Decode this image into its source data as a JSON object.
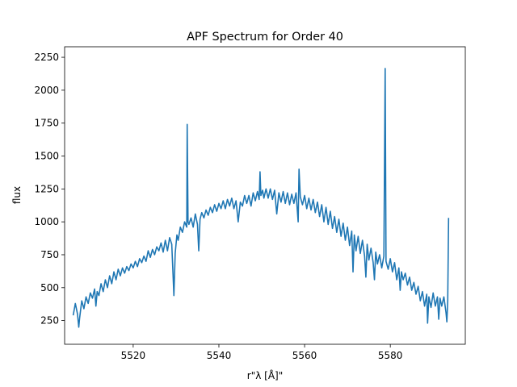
{
  "chart_data": {
    "type": "line",
    "title": "APF Spectrum for Order 40",
    "xlabel": "r\"λ [Å]\"",
    "ylabel": "flux",
    "xlim": [
      5504.0,
      5597.5
    ],
    "ylim": [
      70,
      2330
    ],
    "xticks": [
      5520,
      5540,
      5560,
      5580
    ],
    "yticks": [
      250,
      500,
      750,
      1000,
      1250,
      1500,
      1750,
      2000,
      2250
    ],
    "grid": false,
    "line_color": "#1f77b4",
    "series": [
      {
        "points": [
          [
            5506.0,
            290
          ],
          [
            5506.5,
            380
          ],
          [
            5507.0,
            300
          ],
          [
            5507.3,
            200
          ],
          [
            5507.5,
            270
          ],
          [
            5508.0,
            400
          ],
          [
            5508.5,
            340
          ],
          [
            5509.0,
            430
          ],
          [
            5509.5,
            380
          ],
          [
            5510.0,
            460
          ],
          [
            5510.5,
            420
          ],
          [
            5511.0,
            490
          ],
          [
            5511.3,
            360
          ],
          [
            5511.6,
            470
          ],
          [
            5512.0,
            440
          ],
          [
            5512.5,
            530
          ],
          [
            5513.0,
            470
          ],
          [
            5513.5,
            560
          ],
          [
            5514.0,
            500
          ],
          [
            5514.5,
            590
          ],
          [
            5515.0,
            530
          ],
          [
            5515.5,
            620
          ],
          [
            5516.0,
            560
          ],
          [
            5516.5,
            640
          ],
          [
            5517.0,
            590
          ],
          [
            5517.5,
            650
          ],
          [
            5518.0,
            610
          ],
          [
            5518.5,
            660
          ],
          [
            5519.0,
            630
          ],
          [
            5519.5,
            680
          ],
          [
            5520.0,
            650
          ],
          [
            5520.5,
            700
          ],
          [
            5521.0,
            660
          ],
          [
            5521.5,
            720
          ],
          [
            5522.0,
            690
          ],
          [
            5522.5,
            740
          ],
          [
            5523.0,
            700
          ],
          [
            5523.5,
            780
          ],
          [
            5524.0,
            730
          ],
          [
            5524.5,
            790
          ],
          [
            5525.0,
            750
          ],
          [
            5525.5,
            810
          ],
          [
            5526.0,
            780
          ],
          [
            5526.5,
            840
          ],
          [
            5527.0,
            770
          ],
          [
            5527.5,
            860
          ],
          [
            5528.0,
            780
          ],
          [
            5528.5,
            880
          ],
          [
            5529.0,
            830
          ],
          [
            5529.3,
            600
          ],
          [
            5529.5,
            440
          ],
          [
            5529.8,
            760
          ],
          [
            5530.2,
            900
          ],
          [
            5530.5,
            860
          ],
          [
            5531.0,
            960
          ],
          [
            5531.5,
            920
          ],
          [
            5532.0,
            1000
          ],
          [
            5532.5,
            960
          ],
          [
            5532.6,
            1740
          ],
          [
            5532.8,
            1000
          ],
          [
            5533.0,
            980
          ],
          [
            5533.5,
            1030
          ],
          [
            5534.0,
            960
          ],
          [
            5534.5,
            1060
          ],
          [
            5535.0,
            980
          ],
          [
            5535.3,
            780
          ],
          [
            5535.6,
            1020
          ],
          [
            5536.0,
            1070
          ],
          [
            5536.5,
            1030
          ],
          [
            5537.0,
            1090
          ],
          [
            5537.5,
            1050
          ],
          [
            5538.0,
            1110
          ],
          [
            5538.5,
            1070
          ],
          [
            5539.0,
            1130
          ],
          [
            5539.5,
            1080
          ],
          [
            5540.0,
            1140
          ],
          [
            5540.5,
            1100
          ],
          [
            5541.0,
            1160
          ],
          [
            5541.5,
            1100
          ],
          [
            5542.0,
            1170
          ],
          [
            5542.5,
            1120
          ],
          [
            5543.0,
            1180
          ],
          [
            5543.5,
            1100
          ],
          [
            5544.0,
            1160
          ],
          [
            5544.5,
            1000
          ],
          [
            5545.0,
            1150
          ],
          [
            5545.5,
            1120
          ],
          [
            5546.0,
            1200
          ],
          [
            5546.5,
            1140
          ],
          [
            5547.0,
            1200
          ],
          [
            5547.5,
            1120
          ],
          [
            5548.0,
            1220
          ],
          [
            5548.5,
            1160
          ],
          [
            5549.0,
            1230
          ],
          [
            5549.4,
            1170
          ],
          [
            5549.6,
            1380
          ],
          [
            5549.8,
            1200
          ],
          [
            5550.2,
            1240
          ],
          [
            5550.5,
            1180
          ],
          [
            5551.0,
            1250
          ],
          [
            5551.5,
            1180
          ],
          [
            5552.0,
            1250
          ],
          [
            5552.5,
            1170
          ],
          [
            5553.0,
            1240
          ],
          [
            5553.5,
            1060
          ],
          [
            5554.0,
            1220
          ],
          [
            5554.5,
            1150
          ],
          [
            5555.0,
            1230
          ],
          [
            5555.5,
            1140
          ],
          [
            5556.0,
            1220
          ],
          [
            5556.5,
            1130
          ],
          [
            5557.0,
            1210
          ],
          [
            5557.5,
            1140
          ],
          [
            5558.0,
            1220
          ],
          [
            5558.5,
            1000
          ],
          [
            5558.7,
            1400
          ],
          [
            5559.0,
            1190
          ],
          [
            5559.5,
            1130
          ],
          [
            5560.0,
            1200
          ],
          [
            5560.5,
            1100
          ],
          [
            5561.0,
            1180
          ],
          [
            5561.5,
            1090
          ],
          [
            5562.0,
            1170
          ],
          [
            5562.5,
            1070
          ],
          [
            5563.0,
            1150
          ],
          [
            5563.5,
            1040
          ],
          [
            5564.0,
            1130
          ],
          [
            5564.5,
            1000
          ],
          [
            5565.0,
            1110
          ],
          [
            5565.5,
            980
          ],
          [
            5566.0,
            1080
          ],
          [
            5566.5,
            950
          ],
          [
            5567.0,
            1040
          ],
          [
            5567.5,
            920
          ],
          [
            5568.0,
            1020
          ],
          [
            5568.5,
            890
          ],
          [
            5569.0,
            990
          ],
          [
            5569.5,
            860
          ],
          [
            5570.0,
            960
          ],
          [
            5570.5,
            820
          ],
          [
            5571.0,
            930
          ],
          [
            5571.3,
            620
          ],
          [
            5571.6,
            900
          ],
          [
            5572.0,
            780
          ],
          [
            5572.5,
            890
          ],
          [
            5573.0,
            760
          ],
          [
            5573.5,
            860
          ],
          [
            5574.0,
            740
          ],
          [
            5574.3,
            580
          ],
          [
            5574.6,
            830
          ],
          [
            5575.0,
            710
          ],
          [
            5575.5,
            800
          ],
          [
            5576.0,
            690
          ],
          [
            5576.3,
            560
          ],
          [
            5576.6,
            770
          ],
          [
            5577.0,
            680
          ],
          [
            5577.5,
            750
          ],
          [
            5578.0,
            650
          ],
          [
            5578.5,
            740
          ],
          [
            5578.8,
            2165
          ],
          [
            5579.0,
            700
          ],
          [
            5579.5,
            640
          ],
          [
            5580.0,
            720
          ],
          [
            5580.5,
            620
          ],
          [
            5581.0,
            690
          ],
          [
            5581.5,
            560
          ],
          [
            5582.0,
            650
          ],
          [
            5582.3,
            480
          ],
          [
            5582.6,
            620
          ],
          [
            5583.0,
            560
          ],
          [
            5583.5,
            610
          ],
          [
            5584.0,
            520
          ],
          [
            5584.5,
            580
          ],
          [
            5585.0,
            480
          ],
          [
            5585.5,
            540
          ],
          [
            5586.0,
            450
          ],
          [
            5586.5,
            510
          ],
          [
            5587.0,
            400
          ],
          [
            5587.5,
            470
          ],
          [
            5588.0,
            360
          ],
          [
            5588.5,
            450
          ],
          [
            5588.7,
            230
          ],
          [
            5589.0,
            430
          ],
          [
            5589.5,
            350
          ],
          [
            5590.0,
            460
          ],
          [
            5590.5,
            360
          ],
          [
            5591.0,
            430
          ],
          [
            5591.3,
            260
          ],
          [
            5591.6,
            420
          ],
          [
            5592.0,
            360
          ],
          [
            5592.5,
            430
          ],
          [
            5593.0,
            310
          ],
          [
            5593.2,
            240
          ],
          [
            5593.4,
            400
          ],
          [
            5593.6,
            1030
          ]
        ]
      }
    ]
  }
}
